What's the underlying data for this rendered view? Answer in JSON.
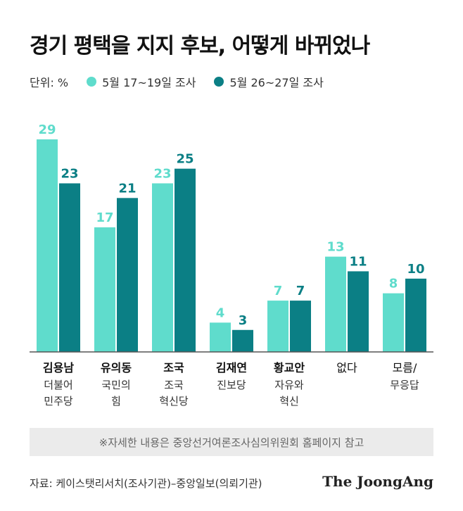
{
  "header": {
    "title": "경기 평택을 지지 후보, 어떻게 바뀌었나"
  },
  "legend": {
    "unit": "단위: %",
    "items": [
      {
        "label": "5월 17~19일 조사",
        "color": "#5fdccc"
      },
      {
        "label": "5월 26~27일 조사",
        "color": "#0b7f85"
      }
    ]
  },
  "chart_data": {
    "type": "bar",
    "categories": [
      "김용남 더불어 민주당",
      "유의동 국민의 힘",
      "조국 조국 혁신당",
      "김재연 진보당",
      "황교안 자유와 혁신",
      "없다",
      "모름/ 무응답"
    ],
    "category_labels": [
      {
        "name": "김용남",
        "sub": [
          "더불어",
          "민주당"
        ]
      },
      {
        "name": "유의동",
        "sub": [
          "국민의",
          "힘"
        ]
      },
      {
        "name": "조국",
        "sub": [
          "조국",
          "혁신당"
        ]
      },
      {
        "name": "김재연",
        "sub": [
          "진보당"
        ]
      },
      {
        "name": "황교안",
        "sub": [
          "자유와",
          "혁신"
        ]
      },
      {
        "name": "없다",
        "sub": []
      },
      {
        "name": "모름/",
        "sub": [
          "무응답"
        ]
      }
    ],
    "bold_names": [
      true,
      true,
      true,
      true,
      true,
      false,
      false
    ],
    "series": [
      {
        "name": "5월 17~19일 조사",
        "values": [
          29,
          17,
          23,
          4,
          7,
          13,
          8
        ],
        "color": "#5fdccc"
      },
      {
        "name": "5월 26~27일 조사",
        "values": [
          23,
          21,
          25,
          3,
          7,
          11,
          10
        ],
        "color": "#0b7f85"
      }
    ],
    "ylim": [
      0,
      30
    ],
    "grid": false,
    "legend_position": "top-left"
  },
  "footer": {
    "note": "※자세한 내용은 중앙선거여론조사심의위원회 홈페이지 참고",
    "source": "자료: 케이스탯리서치(조사기관)–중앙일보(의뢰기관)",
    "logo": "The JoongAng"
  }
}
